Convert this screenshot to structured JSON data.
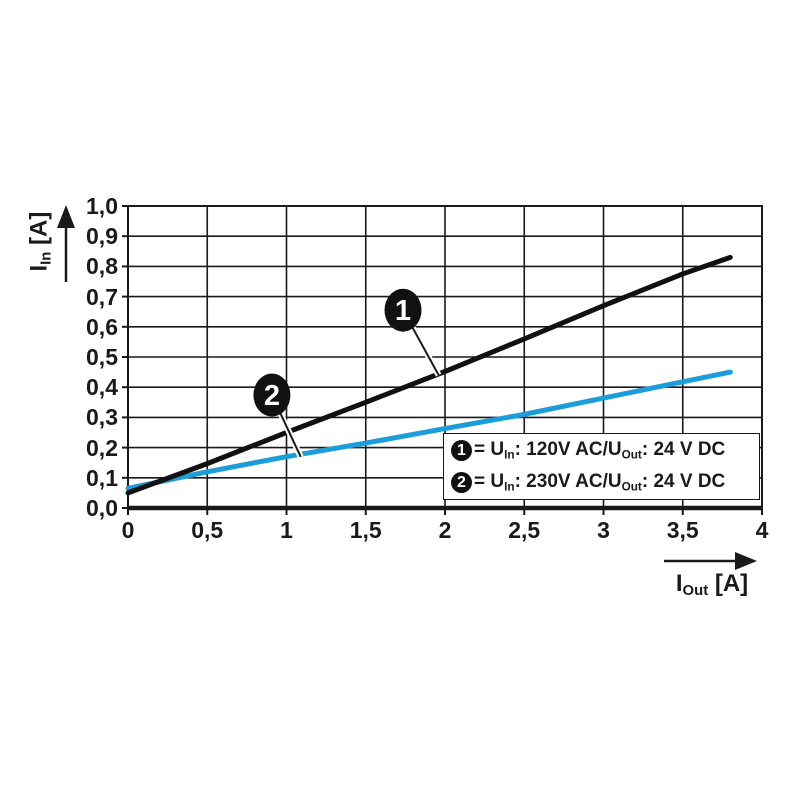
{
  "colors": {
    "foreground": "#1a1a1a",
    "series1": "#111111",
    "series2": "#1b9dd9",
    "callout_fill": "#111111",
    "callout_number": "#ffffff",
    "legend_background": "#ffffff"
  },
  "chart_data": {
    "type": "line",
    "title": "",
    "grid": true,
    "x_axis": {
      "label_main": "I",
      "label_sub": "Out",
      "label_unit": " [A]",
      "range": [
        0,
        4
      ],
      "tick_step": 0.5,
      "tick_labels": [
        "0",
        "0,5",
        "1",
        "1,5",
        "2",
        "2,5",
        "3",
        "3,5",
        "4"
      ]
    },
    "y_axis": {
      "label_main": "I",
      "label_sub": "In",
      "label_unit": " [A]",
      "range": [
        0,
        1
      ],
      "tick_step": 0.1,
      "tick_labels": [
        "0,0",
        "0,1",
        "0,2",
        "0,3",
        "0,4",
        "0,5",
        "0,6",
        "0,7",
        "0,8",
        "0,9",
        "1,0"
      ]
    },
    "series": [
      {
        "name": "1",
        "description": "U_In: 120V AC / U_Out: 24 V DC",
        "color": "#111111",
        "x": [
          0,
          0.5,
          1.0,
          1.5,
          2.0,
          2.5,
          3.0,
          3.5,
          3.8
        ],
        "y": [
          0.05,
          0.147,
          0.25,
          0.35,
          0.452,
          0.56,
          0.67,
          0.775,
          0.83
        ]
      },
      {
        "name": "2",
        "description": "U_In: 230V AC / U_Out: 24 V DC",
        "color": "#1b9dd9",
        "x": [
          0,
          0.5,
          1.0,
          1.5,
          2.0,
          2.5,
          3.0,
          3.5,
          3.8
        ],
        "y": [
          0.065,
          0.12,
          0.17,
          0.215,
          0.263,
          0.31,
          0.364,
          0.418,
          0.45
        ]
      }
    ],
    "callouts": [
      {
        "label": "1",
        "circle_x": 1.735,
        "circle_y": 0.655,
        "target_x": 1.96,
        "target_y": 0.44
      },
      {
        "label": "2",
        "circle_x": 0.908,
        "circle_y": 0.374,
        "target_x": 1.09,
        "target_y": 0.169
      }
    ],
    "legend": {
      "position": "inside-bottom-right",
      "entries": [
        {
          "marker": "1",
          "parts": [
            {
              "text": "= U",
              "sub": false
            },
            {
              "text": "In",
              "sub": true
            },
            {
              "text": ": 120V AC/U",
              "sub": false
            },
            {
              "text": "Out",
              "sub": true
            },
            {
              "text": ": 24 V DC",
              "sub": false
            }
          ]
        },
        {
          "marker": "2",
          "parts": [
            {
              "text": "= U",
              "sub": false
            },
            {
              "text": "In",
              "sub": true
            },
            {
              "text": ": 230V AC/U",
              "sub": false
            },
            {
              "text": "Out",
              "sub": true
            },
            {
              "text": ": 24 V DC",
              "sub": false
            }
          ]
        }
      ]
    }
  }
}
